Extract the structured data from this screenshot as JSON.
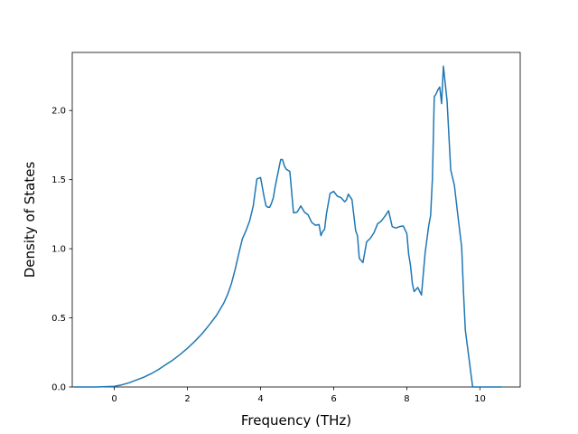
{
  "chart_data": {
    "type": "line",
    "title": "",
    "xlabel": "Frequency (THz)",
    "ylabel": "Density of States",
    "xlim": [
      -1.15,
      11.1
    ],
    "ylim": [
      0.0,
      2.42
    ],
    "xticks": [
      0,
      2,
      4,
      6,
      8,
      10
    ],
    "xtick_labels": [
      "0",
      "2",
      "4",
      "6",
      "8",
      "10"
    ],
    "yticks": [
      0.0,
      0.5,
      1.0,
      1.5,
      2.0
    ],
    "ytick_labels": [
      "0.0",
      "0.5",
      "1.0",
      "1.5",
      "2.0"
    ],
    "grid": false,
    "legend": "none",
    "series": [
      {
        "color": "#1f77b4",
        "x": [
          -1.1,
          -0.5,
          0.0,
          0.2,
          0.4,
          0.6,
          0.8,
          1.0,
          1.2,
          1.4,
          1.6,
          1.8,
          2.0,
          2.2,
          2.4,
          2.6,
          2.8,
          3.0,
          3.1,
          3.2,
          3.3,
          3.4,
          3.5,
          3.6,
          3.65,
          3.7,
          3.75,
          3.8,
          3.9,
          4.0,
          4.1,
          4.15,
          4.2,
          4.25,
          4.3,
          4.35,
          4.4,
          4.5,
          4.55,
          4.6,
          4.65,
          4.7,
          4.8,
          4.9,
          5.0,
          5.1,
          5.2,
          5.3,
          5.4,
          5.5,
          5.6,
          5.65,
          5.7,
          5.75,
          5.8,
          5.9,
          6.0,
          6.1,
          6.2,
          6.3,
          6.35,
          6.4,
          6.5,
          6.6,
          6.65,
          6.7,
          6.8,
          6.9,
          7.0,
          7.1,
          7.2,
          7.3,
          7.4,
          7.5,
          7.6,
          7.7,
          7.8,
          7.9,
          8.0,
          8.05,
          8.1,
          8.15,
          8.2,
          8.3,
          8.4,
          8.5,
          8.6,
          8.65,
          8.7,
          8.75,
          8.8,
          8.85,
          8.9,
          8.95,
          9.0,
          9.1,
          9.2,
          9.3,
          9.4,
          9.5,
          9.55,
          9.6,
          9.8,
          10.0,
          10.2,
          10.6
        ],
        "y": [
          0.0,
          0.0,
          0.005,
          0.015,
          0.03,
          0.05,
          0.07,
          0.095,
          0.125,
          0.16,
          0.195,
          0.235,
          0.28,
          0.33,
          0.385,
          0.45,
          0.52,
          0.61,
          0.67,
          0.745,
          0.845,
          0.96,
          1.07,
          1.13,
          1.165,
          1.2,
          1.255,
          1.31,
          1.505,
          1.515,
          1.37,
          1.31,
          1.3,
          1.3,
          1.33,
          1.37,
          1.45,
          1.58,
          1.645,
          1.645,
          1.6,
          1.575,
          1.56,
          1.26,
          1.265,
          1.31,
          1.265,
          1.245,
          1.19,
          1.17,
          1.175,
          1.095,
          1.125,
          1.14,
          1.25,
          1.4,
          1.415,
          1.38,
          1.37,
          1.34,
          1.355,
          1.395,
          1.355,
          1.13,
          1.095,
          0.93,
          0.9,
          1.05,
          1.075,
          1.115,
          1.18,
          1.2,
          1.235,
          1.275,
          1.16,
          1.15,
          1.16,
          1.165,
          1.11,
          0.96,
          0.88,
          0.75,
          0.69,
          0.72,
          0.665,
          0.97,
          1.17,
          1.24,
          1.51,
          2.1,
          2.12,
          2.15,
          2.17,
          2.05,
          2.32,
          2.07,
          1.57,
          1.46,
          1.23,
          1.01,
          0.68,
          0.41,
          0.0,
          0.0,
          0.0,
          0.0
        ]
      }
    ]
  }
}
